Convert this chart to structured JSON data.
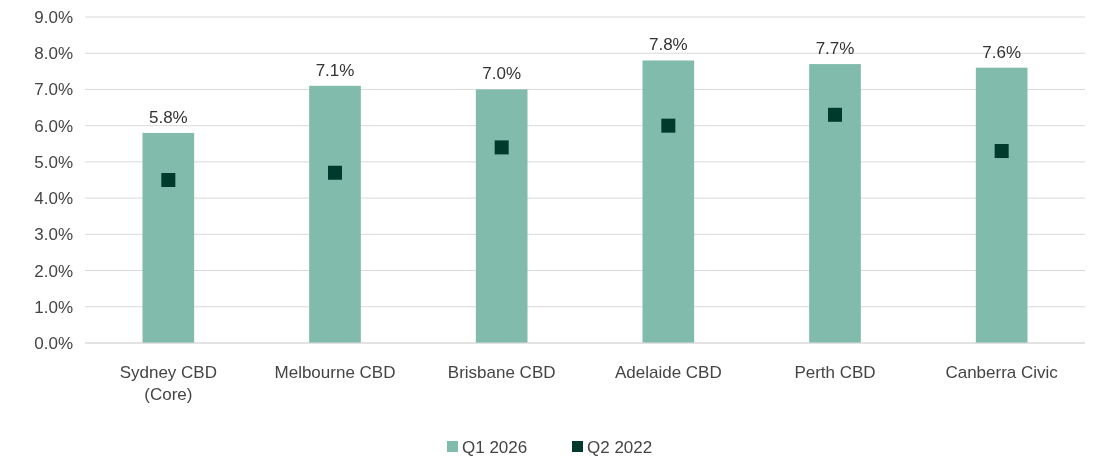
{
  "chart_data": {
    "type": "bar",
    "categories": [
      "Sydney CBD (Core)",
      "Melbourne CBD",
      "Brisbane CBD",
      "Adelaide CBD",
      "Perth CBD",
      "Canberra Civic"
    ],
    "series": [
      {
        "name": "Q1 2026",
        "color": "#80bbab",
        "values": [
          5.8,
          7.1,
          7.0,
          7.8,
          7.7,
          7.6
        ],
        "value_labels": [
          "5.8%",
          "7.1%",
          "7.0%",
          "7.8%",
          "7.7%",
          "7.6%"
        ]
      },
      {
        "name": "Q2 2022",
        "type": "scatter",
        "marker": "square",
        "color": "#003a2c",
        "values": [
          4.5,
          4.7,
          5.4,
          6.0,
          6.3,
          5.3
        ]
      }
    ],
    "ylim": [
      0,
      9
    ],
    "yticks": [
      {
        "value": 0,
        "label": "0.0%"
      },
      {
        "value": 1,
        "label": "1.0%"
      },
      {
        "value": 2,
        "label": "2.0%"
      },
      {
        "value": 3,
        "label": "3.0%"
      },
      {
        "value": 4,
        "label": "4.0%"
      },
      {
        "value": 5,
        "label": "5.0%"
      },
      {
        "value": 6,
        "label": "6.0%"
      },
      {
        "value": 7,
        "label": "7.0%"
      },
      {
        "value": 8,
        "label": "8.0%"
      },
      {
        "value": 9,
        "label": "9.0%"
      }
    ],
    "grid": "y",
    "legend": "bottom"
  }
}
